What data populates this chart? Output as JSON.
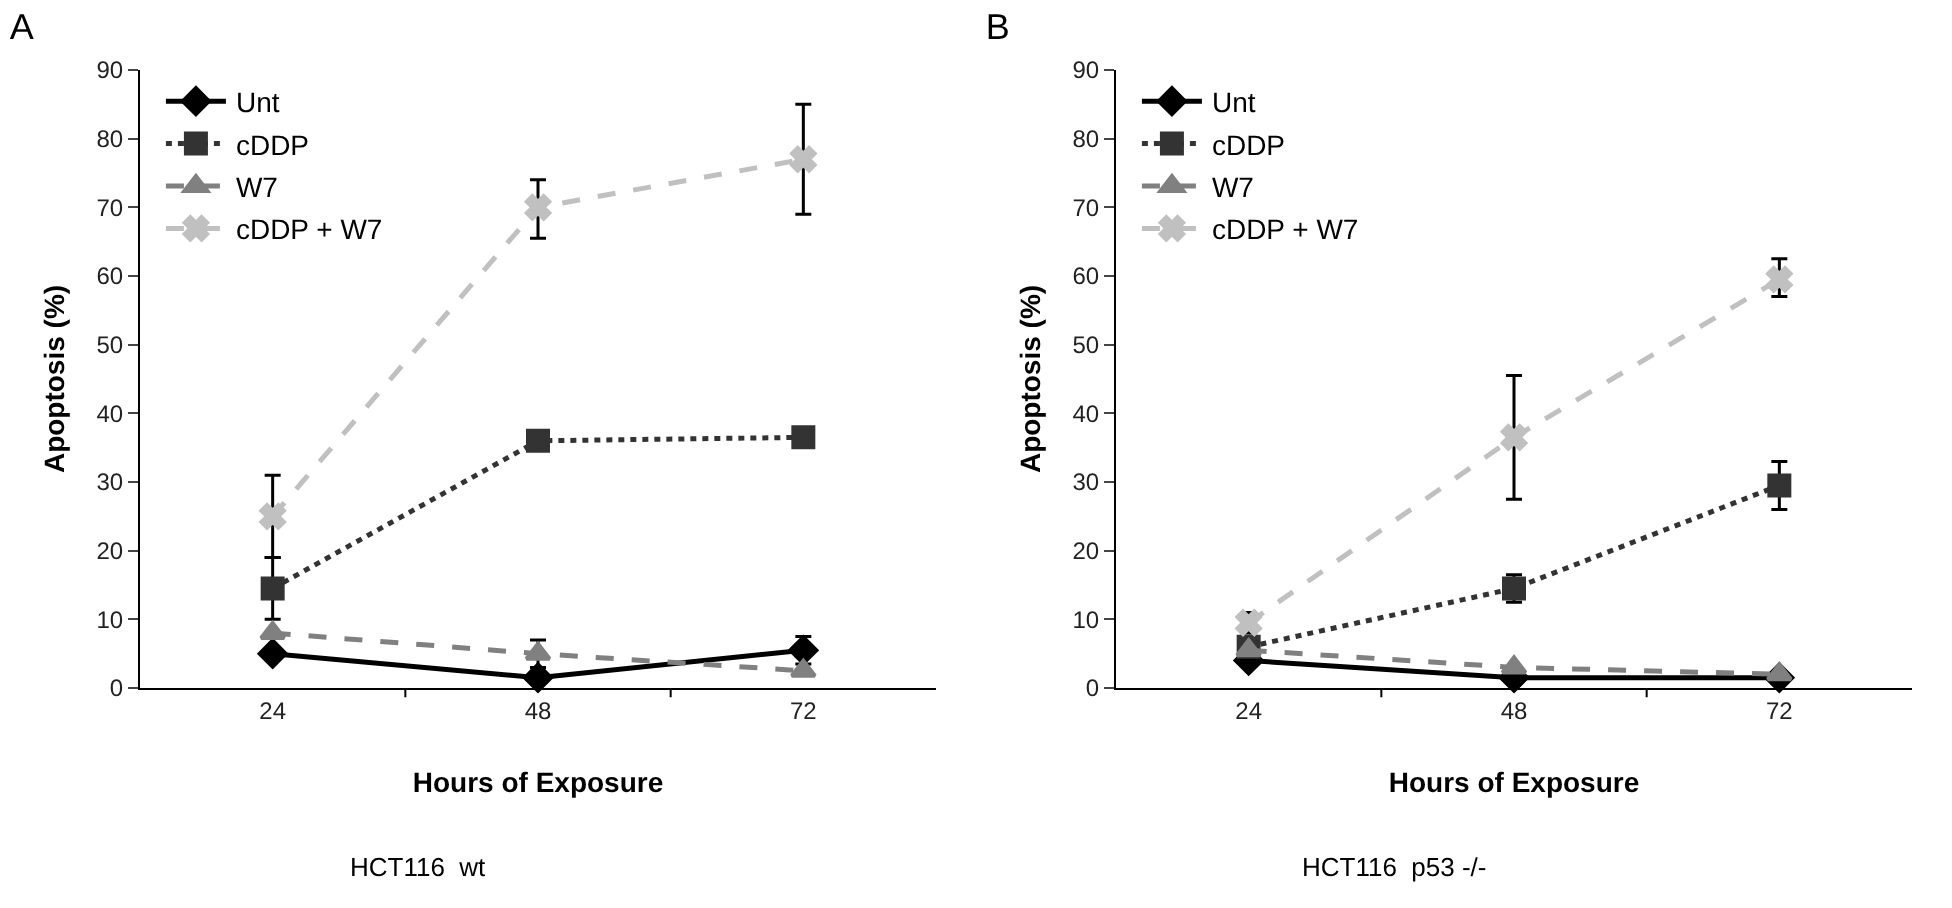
{
  "chart_data": [
    {
      "type": "line",
      "title": "A",
      "xlabel": "Hours of Exposure",
      "ylabel": "Apoptosis (%)",
      "categories": [
        "24",
        "48",
        "72"
      ],
      "ylim": [
        0,
        90
      ],
      "yticks": [
        0,
        10,
        20,
        30,
        40,
        50,
        60,
        70,
        80,
        90
      ],
      "grid": false,
      "legend": "top left",
      "series": [
        {
          "name": "Unt",
          "color": "#000000",
          "marker": "diamond",
          "line_style": "solid",
          "values": [
            5,
            1.5,
            5.5
          ],
          "errors": [
            null,
            null,
            2
          ]
        },
        {
          "name": "cDDP",
          "color": "#333333",
          "marker": "square",
          "line_style": "dotted",
          "values": [
            14.5,
            36,
            36.5
          ],
          "errors": [
            4.5,
            null,
            null
          ]
        },
        {
          "name": "W7",
          "color": "#808080",
          "marker": "triangle",
          "line_style": "dashed",
          "values": [
            8,
            5,
            2.5
          ],
          "errors": [
            null,
            2,
            null
          ]
        },
        {
          "name": "cDDP + W7",
          "color": "#c0c0c0",
          "marker": "cross",
          "line_style": "dashed",
          "values": [
            25,
            70,
            77
          ],
          "errors": [
            6,
            [
              65.5,
              74
            ],
            [
              69,
              85
            ]
          ]
        }
      ],
      "annotations": [
        "HCT116  wt"
      ]
    },
    {
      "type": "line",
      "title": "B",
      "xlabel": "Hours of Exposure",
      "ylabel": "Apoptosis (%)",
      "categories": [
        "24",
        "48",
        "72"
      ],
      "ylim": [
        0,
        90
      ],
      "yticks": [
        0,
        10,
        20,
        30,
        40,
        50,
        60,
        70,
        80,
        90
      ],
      "grid": false,
      "legend": "top left",
      "series": [
        {
          "name": "Unt",
          "color": "#000000",
          "marker": "diamond",
          "line_style": "solid",
          "values": [
            4,
            1.5,
            1.5
          ]
        },
        {
          "name": "cDDP",
          "color": "#333333",
          "marker": "square",
          "line_style": "dotted",
          "values": [
            6,
            14.5,
            29.5
          ],
          "errors": [
            null,
            2,
            [
              26,
              33
            ]
          ]
        },
        {
          "name": "W7",
          "color": "#808080",
          "marker": "triangle",
          "line_style": "dashed",
          "values": [
            5.5,
            3,
            2
          ]
        },
        {
          "name": "cDDP + W7",
          "color": "#c0c0c0",
          "marker": "cross",
          "line_style": "dashed",
          "values": [
            9.5,
            36.5,
            59.5
          ],
          "errors": [
            1.5,
            [
              27.5,
              45.5
            ],
            [
              57,
              62.5
            ]
          ]
        }
      ],
      "annotations": [
        "HCT116  p53 -/-"
      ]
    }
  ]
}
